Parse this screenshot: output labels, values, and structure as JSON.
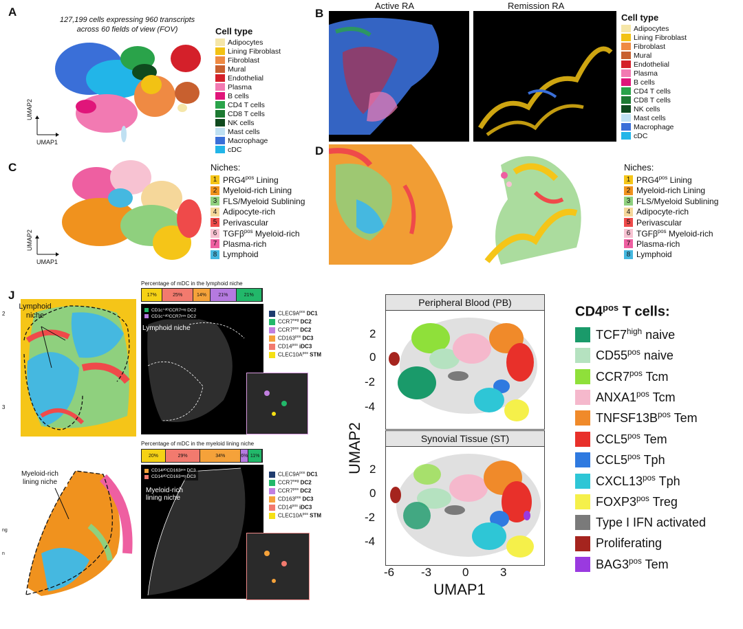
{
  "panels": {
    "a": "A",
    "b": "B",
    "c": "C",
    "d": "D",
    "j": "J"
  },
  "panel_a": {
    "caption_line1": "127,199 cells expressing 960 transcripts",
    "caption_line2": "across 60 fields of view (FOV)",
    "umap1": "UMAP1",
    "umap2": "UMAP2"
  },
  "cell_type_legend": {
    "title": "Cell type",
    "items": [
      {
        "label": "Adipocytes",
        "color": "#f5e6a8"
      },
      {
        "label": "Lining Fibroblast",
        "color": "#f2c214"
      },
      {
        "label": "Fibroblast",
        "color": "#ef8a43"
      },
      {
        "label": "Mural",
        "color": "#c8602f"
      },
      {
        "label": "Endothelial",
        "color": "#d4202a"
      },
      {
        "label": "Plasma",
        "color": "#f27ab2"
      },
      {
        "label": "B cells",
        "color": "#e0157a"
      },
      {
        "label": "CD4 T cells",
        "color": "#2aa34a"
      },
      {
        "label": "CD8 T cells",
        "color": "#1d7a32"
      },
      {
        "label": "NK cells",
        "color": "#0f4a1e"
      },
      {
        "label": "Mast cells",
        "color": "#bfe0f2"
      },
      {
        "label": "Macrophage",
        "color": "#3a6fd8"
      },
      {
        "label": "cDC",
        "color": "#22b5e8"
      }
    ]
  },
  "panel_b": {
    "active": "Active RA",
    "remission": "Remission RA"
  },
  "panel_c": {
    "umap1": "UMAP1",
    "umap2": "UMAP2"
  },
  "niches_legend": {
    "title": "Niches:",
    "items": [
      {
        "num": "1",
        "label": "PRG4",
        "sup": "pos",
        "rest": " Lining",
        "color": "#f5c518"
      },
      {
        "num": "2",
        "label": "Myeloid-rich Lining",
        "sup": "",
        "rest": "",
        "color": "#f0921e"
      },
      {
        "num": "3",
        "label": "FLS/Myeloid Sublining",
        "sup": "",
        "rest": "",
        "color": "#8fd07e"
      },
      {
        "num": "4",
        "label": "Adipocyte-rich",
        "sup": "",
        "rest": "",
        "color": "#f5d79a"
      },
      {
        "num": "5",
        "label": "Perivascular",
        "sup": "",
        "rest": "",
        "color": "#ef4a4a"
      },
      {
        "num": "6",
        "label": "TGFβ",
        "sup": "pos",
        "rest": " Myeloid-rich",
        "color": "#f7c2d2"
      },
      {
        "num": "7",
        "label": "Plasma-rich",
        "sup": "",
        "rest": "",
        "color": "#ee5fa1"
      },
      {
        "num": "8",
        "label": "Lymphoid",
        "sup": "",
        "rest": "",
        "color": "#45b8e0"
      }
    ]
  },
  "panel_j": {
    "lymphoid_niche": "Lymphoid niche",
    "myeloid_niche": "Myeloid-rich lining niche",
    "left_tick_2": "2",
    "left_tick_3": "3",
    "left_text_ng": "ng",
    "left_text_n": "n",
    "lymphoid_pct_title": "Percentage of mDC in the lymphoid niche",
    "lymphoid_pct": [
      {
        "label": "17%",
        "value": 17,
        "color": "#f5d215"
      },
      {
        "label": "25%",
        "value": 25,
        "color": "#f27a6e"
      },
      {
        "label": "14%",
        "value": 14,
        "color": "#f5a23a"
      },
      {
        "label": "21%",
        "value": 21,
        "color": "#b57ae0"
      },
      {
        "label": "21%",
        "value": 21,
        "color": "#22b86a"
      }
    ],
    "myeloid_pct_title": "Percentage of mDC in the myeloid lining niche",
    "myeloid_pct": [
      {
        "label": "20%",
        "value": 20,
        "color": "#f5d215"
      },
      {
        "label": "29%",
        "value": 29,
        "color": "#f27a6e"
      },
      {
        "label": "34%",
        "value": 34,
        "color": "#f5a23a"
      },
      {
        "label": "6%",
        "value": 6,
        "color": "#b57ae0"
      },
      {
        "label": "11%",
        "value": 11,
        "color": "#22b86a"
      }
    ],
    "lymphoid_inset_legend": [
      {
        "label": "CD1c⁺ᵈᴼCCR7ⁿᵉᵍ DC2",
        "color": "#22b86a"
      },
      {
        "label": "CD1c⁺ᵈᴼCCR7ᵖᵒˢ DC2",
        "color": "#b57ae0"
      }
    ],
    "myeloid_inset_legend": [
      {
        "label": "CD14ᵈᴼCD163ᵖᵒˢ DC3",
        "color": "#f5a23a"
      },
      {
        "label": "CD14ᵈᴼCD163ⁿᵉᵍ DC3",
        "color": "#f27a6e"
      }
    ],
    "lymphoid_image_label": "Lymphoid niche",
    "myeloid_image_label": "Myeloid-rich lining niche",
    "mdc_legend": [
      {
        "label": "CLEC9A",
        "sup": "pos",
        "bold": "DC1",
        "color": "#1f3c6e"
      },
      {
        "label": "CCR7",
        "sup": "neg",
        "bold": "DC2",
        "color": "#22b86a"
      },
      {
        "label": "CCR7",
        "sup": "pos",
        "bold": "DC2",
        "color": "#c17fe0"
      },
      {
        "label": "CD163",
        "sup": "pos",
        "bold": "DC3",
        "color": "#f5a23a"
      },
      {
        "label": "CD14",
        "sup": "pos",
        "bold": "iDC3",
        "color": "#f27a6e"
      },
      {
        "label": "CLEC10A",
        "sup": "pos",
        "bold": "STM",
        "color": "#f5e014"
      }
    ],
    "mdc_legend_2": [
      {
        "label": "CLEC9A",
        "sup": "pos",
        "bold": "DC1",
        "color": "#1f3c6e"
      },
      {
        "label": "CCR7",
        "sup": "neg",
        "bold": "DC2",
        "color": "#22b86a"
      },
      {
        "label": "CCR7",
        "sup": "pos",
        "bold": "DC2",
        "color": "#c17fe0"
      },
      {
        "label": "CD163",
        "sup": "pos",
        "bold": "DC3",
        "color": "#f5a23a"
      },
      {
        "label": "CD14",
        "sup": "pos",
        "bold": "iDC3",
        "color": "#f27a6e"
      },
      {
        "label": "CLEC10A",
        "sup": "pos",
        "bold": "STM",
        "color": "#f5e014"
      }
    ]
  },
  "umap_facets": {
    "pb_title": "Peripheral Blood (PB)",
    "st_title": "Synovial Tissue (ST)",
    "y_ticks_top": [
      "2",
      "0",
      "-2",
      "-4"
    ],
    "y_ticks_bottom": [
      "2",
      "0",
      "-2",
      "-4"
    ],
    "x_ticks": [
      "-6",
      "-3",
      "0",
      "3"
    ],
    "xlabel": "UMAP1",
    "ylabel": "UMAP2"
  },
  "cd4_legend": {
    "title": "CD4",
    "title_sup": "pos",
    "title_rest": " T cells:",
    "items": [
      {
        "label": "TCF7",
        "sup": "high",
        "rest": " naive",
        "color": "#1a9a6a"
      },
      {
        "label": "CD55",
        "sup": "pos",
        "rest": " naive",
        "color": "#b5e2c0"
      },
      {
        "label": "CCR7",
        "sup": "pos",
        "rest": " Tcm",
        "color": "#8fe03a"
      },
      {
        "label": "ANXA1",
        "sup": "pos",
        "rest": " Tcm",
        "color": "#f5b8cc"
      },
      {
        "label": "TNFSF13B",
        "sup": "pos",
        "rest": " Tem",
        "color": "#f08a2a"
      },
      {
        "label": "CCL5",
        "sup": "pos",
        "rest": " Tem",
        "color": "#e8302a"
      },
      {
        "label": "CCL5",
        "sup": "pos",
        "rest": " Tph",
        "color": "#2f7ae0"
      },
      {
        "label": "CXCL13",
        "sup": "pos",
        "rest": " Tph",
        "color": "#2ec6d6"
      },
      {
        "label": "FOXP3",
        "sup": "pos",
        "rest": " Treg",
        "color": "#f5f04a"
      },
      {
        "label": "Type I IFN activated",
        "sup": "",
        "rest": "",
        "color": "#7a7a7a"
      },
      {
        "label": "Proliferating",
        "sup": "",
        "rest": "",
        "color": "#a5241e"
      },
      {
        "label": "BAG3",
        "sup": "pos",
        "rest": " Tem",
        "color": "#9a3ae0"
      }
    ]
  }
}
